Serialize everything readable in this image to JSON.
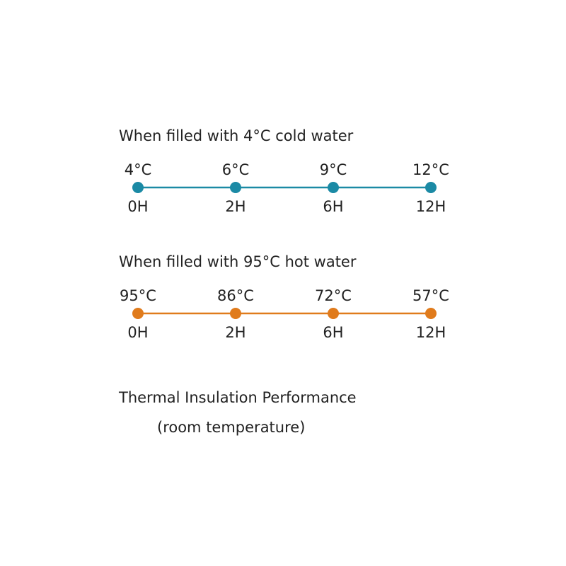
{
  "sections": [
    {
      "title": "When filled with 4°C cold water",
      "color": "#1b8aa5",
      "points": [
        {
          "temp": "4°C",
          "time": "0H"
        },
        {
          "temp": "6°C",
          "time": "2H"
        },
        {
          "temp": "9°C",
          "time": "6H"
        },
        {
          "temp": "12°C",
          "time": "12H"
        }
      ]
    },
    {
      "title": "When filled with 95°C hot water",
      "color": "#e07b1c",
      "points": [
        {
          "temp": "95°C",
          "time": "0H"
        },
        {
          "temp": "86°C",
          "time": "2H"
        },
        {
          "temp": "72°C",
          "time": "6H"
        },
        {
          "temp": "57°C",
          "time": "12H"
        }
      ]
    }
  ],
  "footer": {
    "title": "Thermal Insulation Performance",
    "subtitle": "(room temperature)"
  }
}
